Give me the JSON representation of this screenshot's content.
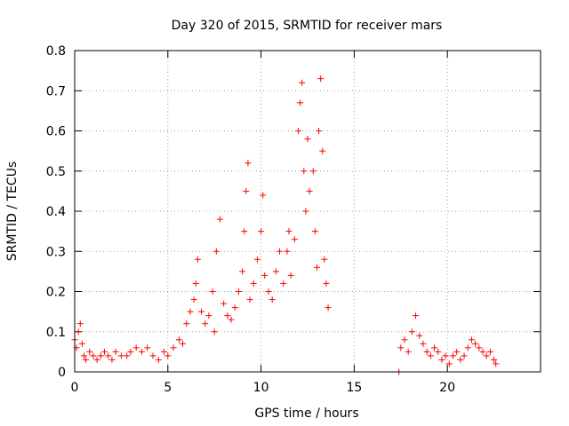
{
  "chart_data": {
    "type": "scatter",
    "title": "Day 320 of 2015, SRMTID for receiver mars",
    "xlabel": "GPS time / hours",
    "ylabel": "SRMTID / TECUs",
    "xlim": [
      0,
      25
    ],
    "ylim": [
      0,
      0.8
    ],
    "xticks": [
      0,
      5,
      10,
      15,
      20
    ],
    "xtick_labels": [
      "0",
      "5",
      "10",
      "15",
      "20"
    ],
    "yticks": [
      0,
      0.1,
      0.2,
      0.3,
      0.4,
      0.5,
      0.6,
      0.7,
      0.8
    ],
    "ytick_labels": [
      "0",
      "0.1",
      "0.2",
      "0.3",
      "0.4",
      "0.5",
      "0.6",
      "0.7",
      "0.8"
    ],
    "grid": true,
    "marker": "+",
    "marker_color": "#ff0000",
    "series": [
      {
        "name": "SRMTID",
        "points": [
          [
            0.0,
            0.08
          ],
          [
            0.1,
            0.06
          ],
          [
            0.2,
            0.1
          ],
          [
            0.3,
            0.12
          ],
          [
            0.4,
            0.07
          ],
          [
            0.5,
            0.04
          ],
          [
            0.6,
            0.03
          ],
          [
            0.8,
            0.05
          ],
          [
            1.0,
            0.04
          ],
          [
            1.2,
            0.03
          ],
          [
            1.4,
            0.04
          ],
          [
            1.6,
            0.05
          ],
          [
            1.8,
            0.04
          ],
          [
            2.0,
            0.03
          ],
          [
            2.2,
            0.05
          ],
          [
            2.5,
            0.04
          ],
          [
            2.8,
            0.04
          ],
          [
            3.0,
            0.05
          ],
          [
            3.3,
            0.06
          ],
          [
            3.6,
            0.05
          ],
          [
            3.9,
            0.06
          ],
          [
            4.2,
            0.04
          ],
          [
            4.5,
            0.03
          ],
          [
            4.8,
            0.05
          ],
          [
            5.0,
            0.04
          ],
          [
            5.3,
            0.06
          ],
          [
            5.6,
            0.08
          ],
          [
            5.8,
            0.07
          ],
          [
            6.0,
            0.12
          ],
          [
            6.2,
            0.15
          ],
          [
            6.4,
            0.18
          ],
          [
            6.5,
            0.22
          ],
          [
            6.6,
            0.28
          ],
          [
            6.8,
            0.15
          ],
          [
            7.0,
            0.12
          ],
          [
            7.2,
            0.14
          ],
          [
            7.4,
            0.2
          ],
          [
            7.5,
            0.1
          ],
          [
            7.6,
            0.3
          ],
          [
            7.8,
            0.38
          ],
          [
            8.0,
            0.17
          ],
          [
            8.2,
            0.14
          ],
          [
            8.4,
            0.13
          ],
          [
            8.6,
            0.16
          ],
          [
            8.8,
            0.2
          ],
          [
            9.0,
            0.25
          ],
          [
            9.1,
            0.35
          ],
          [
            9.2,
            0.45
          ],
          [
            9.3,
            0.52
          ],
          [
            9.4,
            0.18
          ],
          [
            9.6,
            0.22
          ],
          [
            9.8,
            0.28
          ],
          [
            10.0,
            0.35
          ],
          [
            10.1,
            0.44
          ],
          [
            10.2,
            0.24
          ],
          [
            10.4,
            0.2
          ],
          [
            10.6,
            0.18
          ],
          [
            10.8,
            0.25
          ],
          [
            11.0,
            0.3
          ],
          [
            11.2,
            0.22
          ],
          [
            11.4,
            0.3
          ],
          [
            11.5,
            0.35
          ],
          [
            11.6,
            0.24
          ],
          [
            11.8,
            0.33
          ],
          [
            12.0,
            0.6
          ],
          [
            12.1,
            0.67
          ],
          [
            12.2,
            0.72
          ],
          [
            12.3,
            0.5
          ],
          [
            12.4,
            0.4
          ],
          [
            12.5,
            0.58
          ],
          [
            12.6,
            0.45
          ],
          [
            12.8,
            0.5
          ],
          [
            12.9,
            0.35
          ],
          [
            13.0,
            0.26
          ],
          [
            13.1,
            0.6
          ],
          [
            13.2,
            0.73
          ],
          [
            13.3,
            0.55
          ],
          [
            13.4,
            0.28
          ],
          [
            13.5,
            0.22
          ],
          [
            13.6,
            0.16
          ],
          [
            17.5,
            0.06
          ],
          [
            17.7,
            0.08
          ],
          [
            17.9,
            0.05
          ],
          [
            18.1,
            0.1
          ],
          [
            18.3,
            0.14
          ],
          [
            18.5,
            0.09
          ],
          [
            18.7,
            0.07
          ],
          [
            18.9,
            0.05
          ],
          [
            19.1,
            0.04
          ],
          [
            19.3,
            0.06
          ],
          [
            19.5,
            0.05
          ],
          [
            19.7,
            0.03
          ],
          [
            19.9,
            0.04
          ],
          [
            20.1,
            0.02
          ],
          [
            20.3,
            0.04
          ],
          [
            20.5,
            0.05
          ],
          [
            20.7,
            0.03
          ],
          [
            20.9,
            0.04
          ],
          [
            21.1,
            0.06
          ],
          [
            21.3,
            0.08
          ],
          [
            21.5,
            0.07
          ],
          [
            21.7,
            0.06
          ],
          [
            21.9,
            0.05
          ],
          [
            22.1,
            0.04
          ],
          [
            22.3,
            0.05
          ],
          [
            22.5,
            0.03
          ],
          [
            22.6,
            0.02
          ],
          [
            17.4,
            0.0
          ]
        ]
      }
    ]
  }
}
